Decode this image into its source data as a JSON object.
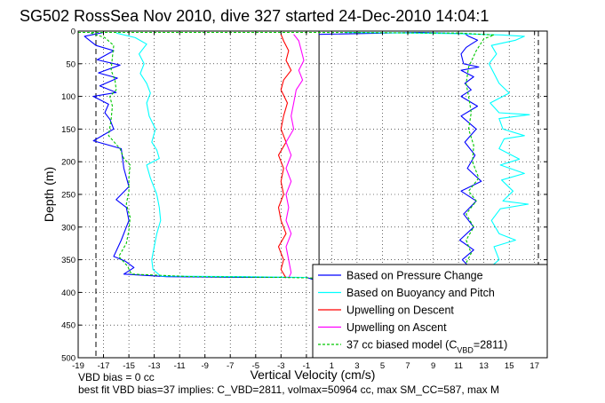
{
  "chart_data": {
    "type": "line",
    "title": "SG502 RossSea Nov 2010, dive 327 started 24-Dec-2010 14:04:1",
    "xlabel": "Vertical Velocity (cm/s)",
    "ylabel": "Depth (m)",
    "xlim": [
      -19,
      18
    ],
    "ylim": [
      500,
      0
    ],
    "y_reversed": true,
    "x_ticks": [
      -19,
      -17,
      -15,
      -13,
      -11,
      -9,
      -7,
      -5,
      -3,
      -1,
      1,
      3,
      5,
      7,
      9,
      11,
      13,
      15,
      17
    ],
    "y_ticks": [
      0,
      50,
      100,
      150,
      200,
      250,
      300,
      350,
      400,
      450,
      500
    ],
    "grid": true,
    "legend_position": "bottom-right",
    "vertical_lines": [
      {
        "x": -17.6,
        "style": "dashed-black"
      },
      {
        "x": 17.3,
        "style": "dashed-black"
      },
      {
        "x": 0,
        "style": "solid-black"
      }
    ],
    "series": [
      {
        "name": "Based on Pressure Change",
        "color": "#0000ff",
        "style": "solid",
        "profiles": [
          [
            [
              -17,
              2
            ],
            [
              -18.5,
              8
            ],
            [
              -17.6,
              22
            ],
            [
              -16.2,
              30
            ],
            [
              -17.5,
              44
            ],
            [
              -15.7,
              52
            ],
            [
              -17.4,
              64
            ],
            [
              -15.9,
              72
            ],
            [
              -17.3,
              84
            ],
            [
              -16,
              94
            ],
            [
              -17.8,
              100
            ],
            [
              -16.6,
              112
            ],
            [
              -16.9,
              125
            ],
            [
              -16.5,
              135
            ],
            [
              -16.2,
              150
            ],
            [
              -17.8,
              168
            ],
            [
              -15.6,
              180
            ],
            [
              -15.4,
              210
            ],
            [
              -15,
              238
            ],
            [
              -16,
              258
            ],
            [
              -15.2,
              270
            ],
            [
              -15,
              290
            ],
            [
              -15.6,
              320
            ],
            [
              -16.2,
              345
            ],
            [
              -15.3,
              352
            ],
            [
              -14.6,
              362
            ],
            [
              -15.4,
              372
            ],
            [
              -12,
              376
            ],
            [
              -6,
              377
            ],
            [
              -1,
              377
            ],
            [
              -0.5,
              380
            ]
          ],
          [
            [
              0,
              5
            ],
            [
              8,
              2
            ],
            [
              11.5,
              4
            ],
            [
              11.8,
              8
            ],
            [
              12.5,
              14
            ],
            [
              12,
              20
            ],
            [
              11.6,
              25
            ],
            [
              11.2,
              35
            ],
            [
              11.4,
              50
            ],
            [
              12.6,
              55
            ],
            [
              11.2,
              60
            ],
            [
              12.2,
              70
            ],
            [
              11.5,
              80
            ],
            [
              12,
              90
            ],
            [
              11.2,
              100
            ],
            [
              12.5,
              115
            ],
            [
              11.2,
              130
            ],
            [
              12.4,
              150
            ],
            [
              11.5,
              170
            ],
            [
              12.3,
              190
            ],
            [
              11.7,
              210
            ],
            [
              12.8,
              230
            ],
            [
              11.2,
              245
            ],
            [
              12.4,
              260
            ],
            [
              11.4,
              280
            ],
            [
              12.2,
              300
            ],
            [
              11.1,
              320
            ],
            [
              12.2,
              335
            ],
            [
              11.3,
              350
            ],
            [
              11.8,
              360
            ]
          ]
        ]
      },
      {
        "name": "Based on Buoyancy and Pitch",
        "color": "#00ffff",
        "style": "solid",
        "profiles": [
          [
            [
              -16,
              3
            ],
            [
              -14.5,
              10
            ],
            [
              -13.6,
              20
            ],
            [
              -14.2,
              35
            ],
            [
              -13.8,
              50
            ],
            [
              -14.1,
              65
            ],
            [
              -13.6,
              80
            ],
            [
              -13.3,
              95
            ],
            [
              -13.6,
              110
            ],
            [
              -13.4,
              130
            ],
            [
              -12.9,
              150
            ],
            [
              -13.2,
              170
            ],
            [
              -12.8,
              182
            ],
            [
              -12.6,
              195
            ],
            [
              -13.6,
              205
            ],
            [
              -13.3,
              225
            ],
            [
              -12.8,
              250
            ],
            [
              -12.6,
              270
            ],
            [
              -12.5,
              290
            ],
            [
              -12.8,
              310
            ],
            [
              -13,
              330
            ],
            [
              -13.2,
              350
            ],
            [
              -13.1,
              365
            ],
            [
              -12.5,
              375
            ],
            [
              -6,
              376
            ],
            [
              -1,
              377
            ]
          ],
          [
            [
              2,
              2
            ],
            [
              11,
              4
            ],
            [
              14.5,
              6
            ],
            [
              16.2,
              8
            ],
            [
              15.5,
              14
            ],
            [
              13.6,
              22
            ],
            [
              14,
              35
            ],
            [
              13.4,
              50
            ],
            [
              13.8,
              65
            ],
            [
              14.2,
              80
            ],
            [
              15,
              95
            ],
            [
              13.5,
              110
            ],
            [
              14.2,
              125
            ],
            [
              16.6,
              128
            ],
            [
              14.2,
              134
            ],
            [
              14.5,
              150
            ],
            [
              16.2,
              160
            ],
            [
              14.6,
              165
            ],
            [
              14.2,
              180
            ],
            [
              15.8,
              196
            ],
            [
              14.3,
              205
            ],
            [
              16.2,
              218
            ],
            [
              14.4,
              228
            ],
            [
              15.3,
              245
            ],
            [
              14.5,
              260
            ],
            [
              16.5,
              265
            ],
            [
              14.3,
              272
            ],
            [
              13.6,
              290
            ],
            [
              14.2,
              310
            ],
            [
              15.5,
              320
            ],
            [
              13.8,
              330
            ],
            [
              14.2,
              350
            ],
            [
              13.6,
              360
            ]
          ]
        ]
      },
      {
        "name": "Upwelling on Descent",
        "color": "#ff0000",
        "style": "solid",
        "profiles": [
          [
            [
              -3,
              5
            ],
            [
              -2.8,
              15
            ],
            [
              -2.4,
              30
            ],
            [
              -2.6,
              45
            ],
            [
              -2.2,
              60
            ],
            [
              -2.8,
              75
            ],
            [
              -3,
              90
            ],
            [
              -2.5,
              110
            ],
            [
              -2.8,
              130
            ],
            [
              -3,
              150
            ],
            [
              -2.6,
              170
            ],
            [
              -3.2,
              190
            ],
            [
              -2.8,
              210
            ],
            [
              -3,
              230
            ],
            [
              -2.8,
              250
            ],
            [
              -3.2,
              270
            ],
            [
              -3,
              290
            ],
            [
              -2.6,
              310
            ],
            [
              -3.2,
              330
            ],
            [
              -2.8,
              350
            ],
            [
              -3,
              365
            ],
            [
              -2.6,
              378
            ]
          ]
        ]
      },
      {
        "name": "Upwelling on Ascent",
        "color": "#ff00ff",
        "style": "solid",
        "profiles": [
          [
            [
              -2,
              5
            ],
            [
              -1.6,
              15
            ],
            [
              -1.4,
              30
            ],
            [
              -1.2,
              45
            ],
            [
              -1.6,
              60
            ],
            [
              -1.3,
              75
            ],
            [
              -1.8,
              90
            ],
            [
              -2,
              110
            ],
            [
              -2.2,
              130
            ],
            [
              -2,
              150
            ],
            [
              -2.6,
              170
            ],
            [
              -2.2,
              190
            ],
            [
              -2.6,
              210
            ],
            [
              -2.2,
              230
            ],
            [
              -2.6,
              250
            ],
            [
              -2.4,
              270
            ],
            [
              -2.6,
              290
            ],
            [
              -2.2,
              310
            ],
            [
              -2.6,
              330
            ],
            [
              -2.4,
              350
            ],
            [
              -2.2,
              370
            ],
            [
              -2.4,
              378
            ]
          ]
        ]
      },
      {
        "name": "37 cc biased model (C",
        "name_sub": "VBD",
        "name_suffix": "=2811)",
        "color": "#00c800",
        "style": "dashed",
        "profiles": [
          [
            [
              -18,
              3
            ],
            [
              -16.9,
              10
            ],
            [
              -16.2,
              22
            ],
            [
              -16.3,
              40
            ],
            [
              -16.4,
              60
            ],
            [
              -16.1,
              75
            ],
            [
              -16,
              90
            ],
            [
              -16.5,
              100
            ],
            [
              -16.3,
              115
            ],
            [
              -16.4,
              135
            ],
            [
              -16.6,
              160
            ],
            [
              -15.7,
              180
            ],
            [
              -15.4,
              195
            ],
            [
              -14.9,
              205
            ],
            [
              -15,
              225
            ],
            [
              -15,
              245
            ],
            [
              -15.2,
              265
            ],
            [
              -14.9,
              285
            ],
            [
              -15,
              305
            ],
            [
              -15.2,
              325
            ],
            [
              -15.8,
              345
            ],
            [
              -15.1,
              360
            ],
            [
              -14.8,
              372
            ],
            [
              -10,
              376
            ],
            [
              -3,
              377
            ],
            [
              -0.5,
              378
            ]
          ],
          [
            [
              -19,
              2
            ],
            [
              0,
              2
            ],
            [
              11,
              3
            ],
            [
              13.8,
              6
            ],
            [
              13,
              12
            ],
            [
              12.4,
              30
            ],
            [
              11.8,
              55
            ],
            [
              11.6,
              80
            ],
            [
              11.8,
              100
            ],
            [
              12,
              125
            ],
            [
              11.8,
              150
            ],
            [
              12.2,
              175
            ],
            [
              12.1,
              200
            ],
            [
              12.6,
              225
            ],
            [
              11.8,
              245
            ],
            [
              12.4,
              260
            ],
            [
              11.6,
              280
            ],
            [
              12.2,
              300
            ],
            [
              11.6,
              320
            ],
            [
              12,
              340
            ],
            [
              11.6,
              355
            ]
          ]
        ]
      }
    ],
    "annotations": [
      "VBD bias = 0 cc",
      "best fit VBD bias=37 implies: C_VBD=2811, volmax=50964 cc, max SM_CC=587, max M"
    ]
  }
}
